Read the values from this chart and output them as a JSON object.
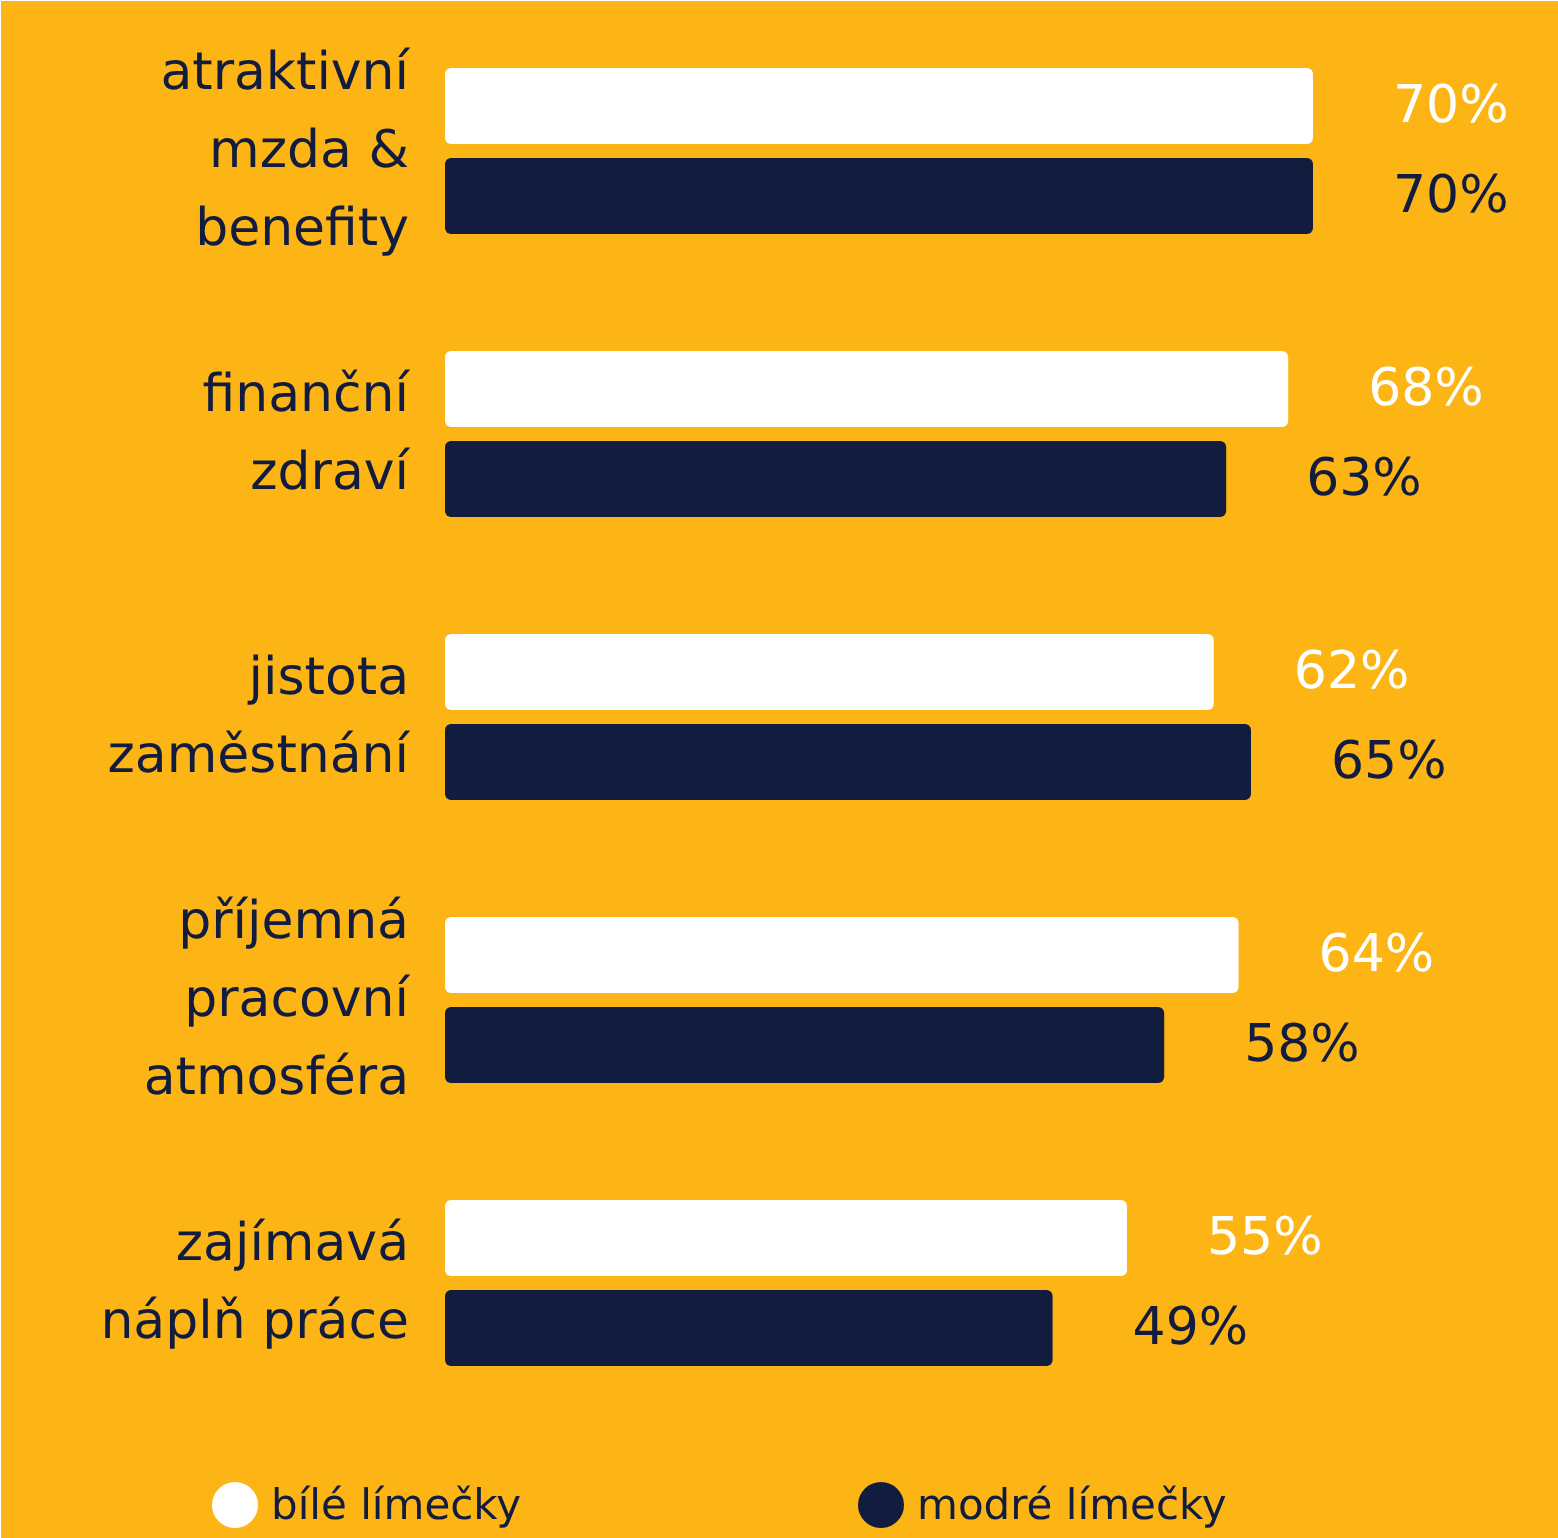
{
  "chart_data": {
    "type": "bar",
    "orientation": "horizontal",
    "categories": [
      "atraktivní mzda & benefity",
      "finanční zdraví",
      "jistota zaměstnání",
      "příjemná pracovní atmosféra",
      "zajímavá náplň práce"
    ],
    "series": [
      {
        "name": "bílé límečky",
        "color": "#ffffff",
        "values": [
          70,
          68,
          62,
          64,
          55
        ],
        "value_labels": [
          "70%",
          "68%",
          "62%",
          "64%",
          "55%"
        ]
      },
      {
        "name": "modré límečky",
        "color": "#121c3e",
        "values": [
          70,
          63,
          65,
          58,
          49
        ],
        "value_labels": [
          "70%",
          "63%",
          "65%",
          "58%",
          "49%"
        ]
      }
    ],
    "legend": "bottom",
    "grid": false
  }
}
